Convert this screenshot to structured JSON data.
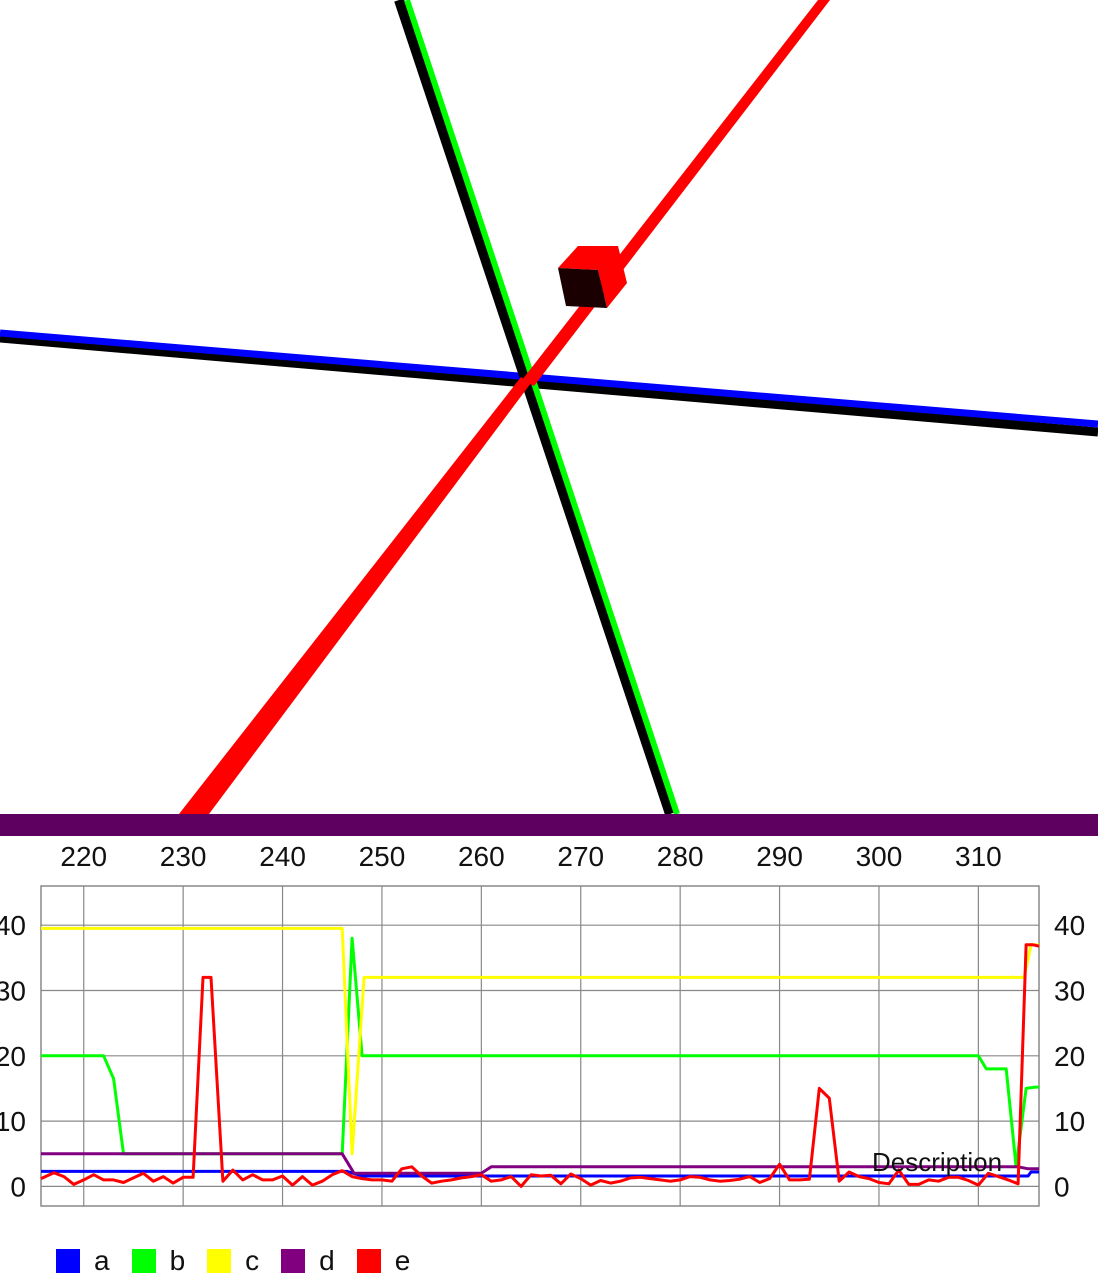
{
  "scene": {
    "axes": [
      {
        "name": "x-axis",
        "color": "#0000ff"
      },
      {
        "name": "y-axis",
        "color": "#00ff00"
      },
      {
        "name": "z-axis",
        "color": "#ff0000"
      }
    ],
    "cube_color": "#ff0000"
  },
  "divider_color": "#5e0060",
  "chart_data": {
    "type": "line",
    "title": "",
    "xlabel": "",
    "ylabel": "",
    "xlim": [
      215.7,
      316.1
    ],
    "ylim": [
      -3,
      46
    ],
    "x_ticks": [
      220,
      230,
      240,
      250,
      260,
      270,
      280,
      290,
      300,
      310
    ],
    "y_ticks": [
      0,
      10,
      20,
      30,
      40
    ],
    "y_tick_labels_left": [
      "0",
      "10",
      "20",
      "30",
      "40"
    ],
    "y_tick_labels_right": [
      "0",
      "10",
      "20",
      "30",
      "40"
    ],
    "grid": true,
    "legend_position": "bottom-left",
    "annotation": "Description",
    "series": [
      {
        "name": "a",
        "color": "#0000ff",
        "points": [
          [
            215.7,
            2.3
          ],
          [
            246.5,
            2.3
          ],
          [
            248,
            1.6
          ],
          [
            315,
            1.6
          ],
          [
            315.3,
            2.2
          ],
          [
            316.1,
            2.2
          ]
        ]
      },
      {
        "name": "b",
        "color": "#00ff00",
        "points": [
          [
            215.7,
            20
          ],
          [
            222,
            20
          ],
          [
            223,
            16.5
          ],
          [
            224,
            5
          ],
          [
            246,
            5
          ],
          [
            247,
            38
          ],
          [
            248,
            20
          ],
          [
            310,
            20
          ],
          [
            310.8,
            18
          ],
          [
            312.8,
            18
          ],
          [
            313.8,
            3
          ],
          [
            314.8,
            15
          ],
          [
            315.7,
            15.2
          ],
          [
            316.1,
            15.2
          ]
        ]
      },
      {
        "name": "c",
        "color": "#ffff00",
        "points": [
          [
            215.7,
            39.5
          ],
          [
            246,
            39.5
          ],
          [
            247,
            5
          ],
          [
            248.2,
            32
          ],
          [
            314,
            32
          ],
          [
            314.6,
            32
          ],
          [
            315.3,
            37
          ],
          [
            316.1,
            37
          ]
        ]
      },
      {
        "name": "d",
        "color": "#800080",
        "points": [
          [
            215.7,
            5
          ],
          [
            246,
            5
          ],
          [
            247.2,
            2
          ],
          [
            254,
            2
          ],
          [
            260,
            2
          ],
          [
            261,
            3
          ],
          [
            298,
            3
          ],
          [
            314,
            3
          ],
          [
            315,
            2.7
          ],
          [
            316.1,
            2.7
          ]
        ]
      },
      {
        "name": "e",
        "color": "#ff0000",
        "points": [
          [
            215.7,
            1.2
          ],
          [
            217,
            2.1
          ],
          [
            218,
            1.5
          ],
          [
            219,
            0.3
          ],
          [
            220,
            1
          ],
          [
            221,
            1.8
          ],
          [
            222,
            1
          ],
          [
            223,
            1
          ],
          [
            224,
            0.6
          ],
          [
            225,
            1.3
          ],
          [
            226,
            2
          ],
          [
            227,
            0.8
          ],
          [
            228,
            1.5
          ],
          [
            229,
            0.5
          ],
          [
            230,
            1.4
          ],
          [
            231,
            1.4
          ],
          [
            232,
            32
          ],
          [
            232.8,
            32
          ],
          [
            234,
            0.8
          ],
          [
            235,
            2.5
          ],
          [
            236,
            1
          ],
          [
            237,
            1.8
          ],
          [
            238,
            1
          ],
          [
            239,
            1
          ],
          [
            240,
            1.6
          ],
          [
            241,
            0.2
          ],
          [
            242,
            1.5
          ],
          [
            243,
            0.2
          ],
          [
            244,
            0.8
          ],
          [
            245,
            1.8
          ],
          [
            246,
            2.4
          ],
          [
            247,
            1.5
          ],
          [
            248,
            1.2
          ],
          [
            249,
            1
          ],
          [
            250,
            1
          ],
          [
            251,
            0.8
          ],
          [
            252,
            2.7
          ],
          [
            253,
            3
          ],
          [
            254,
            1.6
          ],
          [
            255,
            0.5
          ],
          [
            256,
            0.8
          ],
          [
            257,
            1
          ],
          [
            258,
            1.3
          ],
          [
            259,
            1.5
          ],
          [
            260,
            1.8
          ],
          [
            261,
            0.8
          ],
          [
            262,
            1
          ],
          [
            263,
            1.5
          ],
          [
            264,
            0
          ],
          [
            265,
            1.8
          ],
          [
            266,
            1.6
          ],
          [
            267,
            1.7
          ],
          [
            268,
            0.4
          ],
          [
            269,
            1.9
          ],
          [
            270,
            1.2
          ],
          [
            271,
            0.2
          ],
          [
            272,
            0.9
          ],
          [
            273,
            0.5
          ],
          [
            274,
            0.8
          ],
          [
            275,
            1.3
          ],
          [
            276,
            1.4
          ],
          [
            277,
            1.2
          ],
          [
            278,
            1
          ],
          [
            279,
            0.8
          ],
          [
            280,
            1
          ],
          [
            281,
            1.5
          ],
          [
            282,
            1.4
          ],
          [
            283,
            1
          ],
          [
            284,
            0.8
          ],
          [
            285,
            0.9
          ],
          [
            286,
            1.1
          ],
          [
            287,
            1.5
          ],
          [
            288,
            0.6
          ],
          [
            289,
            1.2
          ],
          [
            290,
            3.4
          ],
          [
            291,
            1
          ],
          [
            292,
            1
          ],
          [
            293,
            1.1
          ],
          [
            294,
            15
          ],
          [
            295,
            13.5
          ],
          [
            296,
            0.8
          ],
          [
            297,
            2.2
          ],
          [
            298,
            1.5
          ],
          [
            299,
            1.2
          ],
          [
            300,
            0.6
          ],
          [
            301,
            0.4
          ],
          [
            302,
            2.5
          ],
          [
            303,
            0.3
          ],
          [
            304,
            0.3
          ],
          [
            305,
            1
          ],
          [
            306,
            0.8
          ],
          [
            307,
            1.4
          ],
          [
            308,
            1.4
          ],
          [
            309,
            0.9
          ],
          [
            310,
            0.2
          ],
          [
            311,
            2
          ],
          [
            312,
            1.5
          ],
          [
            313,
            1
          ],
          [
            314,
            0.4
          ],
          [
            314.8,
            37
          ],
          [
            315.5,
            37
          ],
          [
            316.1,
            36.8
          ]
        ]
      }
    ]
  }
}
